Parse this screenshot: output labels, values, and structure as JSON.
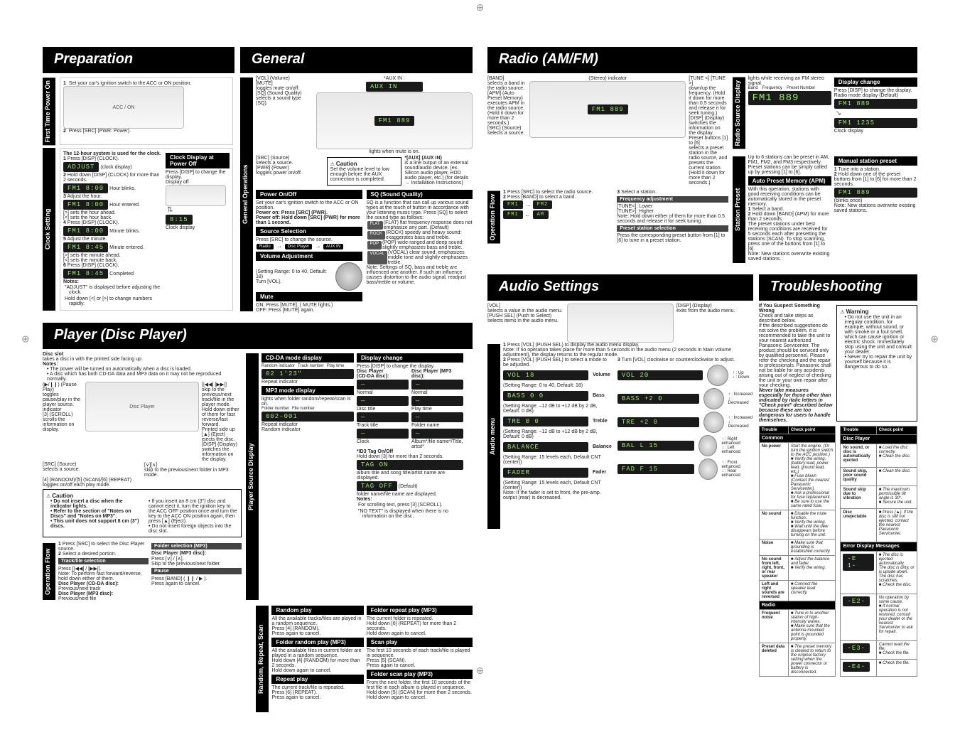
{
  "headers": {
    "preparation": "Preparation",
    "general": "General",
    "radio": "Radio (AM/FM)",
    "player": "Player (Disc Player)",
    "audio": "Audio Settings",
    "trouble": "Troubleshooting"
  },
  "vtabs": {
    "firstPower": "First Time Power On",
    "clockSetting": "Clock Setting",
    "generalOps": "General Operations",
    "operFlow": "Operation Flow",
    "radioSrc": "Radio Source Display",
    "stationPreset": "Station Preset",
    "playerSrc": "Player Source Display",
    "randomRepeat": "Random, Repeat, Scan",
    "operFlow2": "Operation Flow",
    "audioMenu": "Audio menu"
  },
  "prep": {
    "step1": "Set your car's ignition switch to the ACC or ON position.",
    "step2": "Press [SRC] (PWR: Power).",
    "clockTitle": "The 12-hour system is used for the clock.",
    "clock1": "Press [DISP] (CLOCK).",
    "clockDisp": "ADJUST",
    "clockDispLabel": "(clock display)",
    "clock2": "Hold down [DISP] (CLOCK) for more than 2 seconds.",
    "clockHourBlink": "Hour blinks.",
    "clock3": "Adjust the hour.",
    "clockHourEntered": "Hour entered.",
    "clock3b": "[>] sets the hour ahead.\n[<] sets the hour back.",
    "clock4": "Press [DISP] (CLOCK).",
    "clockMinBlink": "Minute blinks.",
    "clock5": "Adjust the minute.",
    "clockMinEntered": "Minute entered.",
    "clock5b": "[>] sets the minute ahead.\n[<] sets the minute back.",
    "clock6": "Press [DISP] (CLOCK).",
    "clockDone": "Completed",
    "notesHdr": "Notes:",
    "note1": "\"ADJUST\" is displayed before adjusting the clock.",
    "note2": "Hold down [<] or [>] to change numbers rapidly.",
    "clockOffTitle": "Clock Display at Power Off",
    "clockOffBody": "Press [DISP] to change the display.",
    "displayOff": "Display off",
    "lcdHour1": "FM1  8:00",
    "lcdHour2": "FM1  8:00",
    "lcdMin1": "FM1  8:00",
    "lcdMin2": "FM1  8:45",
    "lcdDone": "FM1  8:45",
    "lcdOff": "8:15",
    "clockDisplayLabel": "Clock display"
  },
  "gen": {
    "vol": "[VOL] (Volume)",
    "mute": "[MUTE]\ntoggles mute on/off.",
    "sq": "[SQ] (Sound Quality)\nselects a sound type (SQ).",
    "src": "[SRC] (Source)\nselects a source.\n[PWR] (Power)\ntoggles power on/off.",
    "auxHdr": "*[AUX] (AUX IN)",
    "auxCap": "is a line output of an external sound/audio device. (ex. Silicon audio player, HDD audio player, etc.) (for details → Installation Instructions)",
    "auxCaution": "Caution",
    "auxCautionBody": "Set the volume level to low enough before the AUX connection is completed.",
    "auxIn": "*AUX IN :",
    "lcdAux": "AUX IN",
    "lcdMain": "FM1 889",
    "muteLabel": "lights when mute is on.",
    "powerTitle": "Power On/Off",
    "powerBody": "Set your car's ignition switch to the ACC or ON position.",
    "powerOn": "Power on: Press [SRC] (PWR).",
    "powerOff": "Power off: Hold down [SRC] (PWR) for more than 1 second.",
    "srcSelTitle": "Source Selection",
    "srcSelBody": "Press [SRC] to change the source.",
    "srcChain1": "Radio",
    "srcChain2": "Disc Player",
    "srcChain3": "AUX IN",
    "volAdjTitle": "Volume Adjustment",
    "volAdjBody": "(Setting Range: 0 to 40, Default: 18)\nTurn [VOL].",
    "muteTitle": "Mute",
    "muteOn": "ON: Press [MUTE]. ( MUTE lights.)",
    "muteOff": "OFF: Press [MUTE] again.",
    "sqTitle": "SQ (Sound Quality)",
    "sqBody": "SQ is a function that can call up various sound types at the touch of button in accordance with your listening music type.\nPress [SQ] to select the sound type as follows:",
    "sqFlat": "(FLAT) flat frequency response does not emphasize any part. (Default)",
    "sqRock": "(ROCK) speedy and heavy sound: exaggerates bass and treble.",
    "sqPop": "(POP) wide-ranged and deep sound: slightly emphasizes bass and treble.",
    "sqVocal": "(VOCAL) clear sound: emphasizes middle tone and slightly emphasizes treble.",
    "sqNote": "Note: Settings of SQ, bass and treble are influenced one another. If such an influence causes distortion to the audio signal, readjust bass/treble or volume.",
    "chipFlat": "FLAT",
    "chipRock": "ROCK",
    "chipPop": "POP",
    "chipVocal": "VOCAL"
  },
  "radio": {
    "band": "[BAND]\nselects a band in the radio source.\n[APM] (Auto Preset Memory)\nexecutes APM in the radio source. (Hold it down for more than 2 seconds.)",
    "src": "[SRC] (Source)\nselects a source.",
    "tune": "[TUNE <] [TUNE >]\ndown/up the frequency. (Hold it down for more than 0.5 seconds and release it for seek tuning.)",
    "disp": "[DISP] (Display)\nswitches the information on the display.",
    "stereo": "(Stereo) indicator",
    "lcd": "FM1 889",
    "preset": "Preset buttons [1] to [6]\nselects a preset station in the radio source, and presets the current station. (Hold it down for more than 2 seconds.)",
    "flow1": "Press [SRC] to select the radio source.",
    "flow2": "Press [BAND] to select a band.",
    "flow3": "Select a station.",
    "bandChain1": "FM1",
    "bandChain2": "FM2",
    "bandChain3": "AM",
    "bandChain4": "FM1",
    "freqTitle": "Frequency adjustment",
    "freqBody": "[TUNE<]: Lower\n[TUNE>]: Higher",
    "freqNote": "Note: Hold down either of them for more than 0.5 seconds and release it for seek tuning.",
    "presetSelTitle": "Preset station selection",
    "presetSelBody": "Press the corresponding preset button from [1] to [6] to tune in a preset station.",
    "rsLights": "lights while receiving an FM stereo signal.",
    "rsBand": "Band",
    "rsFreq": "Frequency",
    "rsPreset": "Preset Number",
    "rsLcd1": "FM1 889",
    "dispChgTitle": "Display change",
    "dispChgBody": "Press [DISP] to change the display.",
    "dispChgLabel": "Radio mode display (Default)",
    "rsLcd2": "FM1 889",
    "rsLcd3": "FM1 1235",
    "clockDisp": "Clock display",
    "spBody": "Up to 6 stations can be preset in AM, FM1, FM2, and FM3 respectively.\nPreset stations can be simply called up by pressing [1] to [6].",
    "apmTitle": "Auto Preset Memory (APM)",
    "apmBody": "With this operation, stations with good receiving conditions can be automatically stored in the preset memory.",
    "apm1": "Select a band.",
    "apm2": "Hold down [BAND] (APM) for more than 2 seconds.",
    "apmNote": "The preset stations under best receiving conditions are received for 5 seconds each after presetting the stations (SCAN). To stop scanning, press one of the buttons from [1] to [6].",
    "apmNote2": "Note: New stations overwrite existing saved stations.",
    "manTitle": "Manual station preset",
    "man1": "Tune into a station.",
    "man2": "Hold down one of the preset buttons from [1] to [6] for more than 2 seconds.",
    "manLcd": "FM1 889",
    "manBlink": "(blinks once)",
    "manNote": "Note: New stations overwrite existing saved stations."
  },
  "player": {
    "discSlot": "Disc slot",
    "discSlotBody": "takes a disc in with the printed side facing up.",
    "notesHdr": "Notes:",
    "note1": "The power will be turned on automatically when a disc is loaded.",
    "note2": "A disc which has both CD-DA data and MP3 data on it may not be reproduced normally.",
    "discInd": " indicator",
    "pp": "(▶/❙❙) (Pause Play)\ntoggles pause/play in the player source.",
    "scroll": "[3] (SCROLL)\nscrolls the information on display.",
    "src": "[SRC] (Source)\nselects a source.",
    "trackNav": "[|◀◀] [▶▶|]\nskip to the previous/next track/file in the player mode. Hold down either of them for fast reverse/fast forward.",
    "eject": "[▲] (Eject)\nejects the disc.",
    "dispBtn": "[DISP] (Display)\nswitches the information on the display.",
    "folder": "[∨][∧]\nskip to the previous/next folder in MP3 mode.",
    "randRep": "[4] (RANDOM)/[5] (SCAN)/[6] (REPEAT)\ntoggles on/off each play mode.",
    "printed": "Printed side up",
    "cautTitle": "Caution",
    "caut1": "Do not insert a disc when the  indicator lights.",
    "caut2": "Refer to the section of \"Notes on Discs\" and \"Notes on MP3\".",
    "caut3": "This unit does not support 8 cm (3\") discs.",
    "cautR1": "If you insert an 8 cm (3\") disc and cannot eject it, turn the ignition key to the ACC OFF position once and turn the key to the ACC ON position again, then press [▲] (Eject).",
    "cautR2": "Do not insert foreign objects into the disc slot.",
    "of1": "Press [SRC] to select the Disc Player source.",
    "of2": "Select a desired portion.",
    "tfTitle": "Track/file selection",
    "tfBody": "Press [|◀◀] / [▶▶|].",
    "tfNote": "Note: To perform fast forward/reverse, hold down either of them.",
    "tfCD": "Disc Player (CD-DA disc):",
    "tfCDb": "Previous/next track",
    "tfMP3": "Disc Player (MP3 disc):",
    "tfMP3b": "Previous/next file",
    "fsTitle": "Folder selection (MP3)",
    "fsHdr": "Disc Player (MP3 disc):",
    "fsBody": "Press [∨] / [∧].\nSkip to the previous/next folder.",
    "pauseTitle": "Pause",
    "pauseBody": "Press [BAND] ( ❙❙ / ▶ ).\nPress again to cancel.",
    "cdaTitle": "CD-DA mode display",
    "cdaR": "Random indicator",
    "cdaT": "Track number",
    "cdaP": "Play time",
    "cdaLcd": "02   1'23\"",
    "cdaRep": "Repeat indicator",
    "mp3Title": "MP3 mode display",
    "mp3Lights": "lights when folder random/repeat/scan is on.",
    "mp3F": "Folder number",
    "mp3Fi": "File number",
    "mp3Lcd": "002-001",
    "mp3Rep": "Repeat indicator",
    "mp3Rnd": "Random indicator",
    "dcTitle": "Display change",
    "dcBody": "Press [DISP] to change the display.",
    "dcCD": "Disc Player\n(CD-DA disc):",
    "dcMP3": "Disc Player (MP3 disc):",
    "dcNormal": "Normal",
    "dcDiscTitle": "Disc title",
    "dcTrackTitle": "Track title",
    "dcClock": "Clock",
    "dcFolder": "Folder name",
    "dcAlbum": "Album*/file name*/Title, artist*",
    "dcPlayTime": "Play time",
    "id3Title": "*ID3 Tag On/Off",
    "id3Body": "Hold down [3] for more than 2 seconds.",
    "id3On": "TAG ON",
    "id3OnBody": "album title and song title/artist name are displayed.",
    "id3Off": "TAG OFF",
    "id3OffDef": "(Default)",
    "id3OffBody": "folder name/file name are displayed.",
    "dcNotes": "Notes:",
    "dcN1": "For scrolling text, press [3] (SCROLL).",
    "dcN2": "\"NO TEXT\" is displayed when there is no information on the disc.",
    "rpTitle": "Random play",
    "rpBody": "All the available tracks/files are played in a random sequence.\nPress [4] (RANDOM).\nPress again to cancel.",
    "frpTitle": "Folder random play (MP3)",
    "frpBody": "All the available files in current folder are played in a random sequence.\nHold down [4] (RANDOM) for more than 2 seconds.\nHold down again to cancel.",
    "repTitle": "Repeat play",
    "repBody": "The current track/file is repeated.\nPress [6] (REPEAT).\nPress again to cancel.",
    "frepTitle": "Folder repeat play (MP3)",
    "frepBody": "The current folder is repeated.\nHold down [6] (REPEAT) for more than 2 seconds.\nHold down again to cancel.",
    "scanTitle": "Scan play",
    "scanBody": "The first 10 seconds of each track/file is played in sequence.\nPress [5] (SCAN).\nPress again to cancel.",
    "fscanTitle": "Folder scan play (MP3)",
    "fscanBody": "From the next folder, the first 10 seconds of the first file in each album is played in sequence.\nHold down [5] (SCAN) for more than 2 seconds.\nHold down again to cancel."
  },
  "audio": {
    "volLabel": "[VOL]\nselects a value in the audio menu.\n[PUSH SEL] (Push to Select)\nselects items in the audio menu.",
    "dispLabel": "[DISP] (Display)\nexits from the audio menu.",
    "s1": "Press [VOL] (PUSH SEL) to display the audio menu display.",
    "s1Note": "Note: If no operation takes place for more than 5 seconds in the audio menu (2 seconds in Main volume adjustment), the display returns to the regular mode.",
    "s2": "Press [VOL] (PUSH SEL) to select a mode to be adjusted.",
    "s3": "Turn [VOL] clockwise or counterclockwise to adjust.",
    "items": [
      {
        "lcd": "VOL   18",
        "name": "Volume",
        "range": "(Setting Range: 0 to 40, Default: 18)",
        "up": "↑ : Up",
        "dn": "↓ : Down",
        "rlcd": "VOL   20"
      },
      {
        "lcd": "BASS  0  0",
        "name": "Bass",
        "range": "(Setting Range: –12 dB to +12 dB by 2 dB, Default: 0 dB)",
        "up": "↑ : Increased",
        "dn": "↓ : Decreased",
        "rlcd": "BASS  +2  0"
      },
      {
        "lcd": "TRE 0  0",
        "name": "Treble",
        "range": "(Setting Range: –12 dB to +12 dB by 2 dB, Default: 0 dB)",
        "up": "↑ : Increased",
        "dn": "↓ : Decreased",
        "rlcd": "TRE  +2  0"
      },
      {
        "lcd": "BALANCE",
        "name": "Balance",
        "range": "(Setting Range: 15 levels each, Default CNT (center))",
        "up": "↑ : Right enhanced",
        "dn": "↓ : Left enhanced",
        "rlcd": "BAL L  15"
      },
      {
        "lcd": "FADER",
        "name": "Fader",
        "range": "(Setting Range: 15 levels each, Default CNT (center))",
        "up": "↑ : Front enhanced",
        "dn": "↓ : Rear enhanced",
        "rlcd": "FAD F  15"
      }
    ],
    "faderNote": "Note: If the fader is set to front, the pre-amp. output (rear) is decreased."
  },
  "trouble": {
    "lead": "If You Suspect Something Wrong",
    "leadBody": "Check and take steps as described below.\nIf the described suggestions do not solve the problem, it is recommended to take the unit to your nearest authorized Panasonic Servicenter. The product should be serviced only by qualified personnel. Please refer the checking and the repair to professionals. Panasonic shall not be liable for any accidents arising out of neglect of checking the unit or your own repair after your checking.",
    "never": "Never take measures especially for those other than indicated by italic letters in \"Check point\" described below because these are too dangerous for users to handle themselves.",
    "warnTitle": "Warning",
    "warn1": "Do not use the unit in an irregular condition, for example, without sound, or with smoke or a foul smell, which can cause ignition or electric shock. Immediately stop using the unit and consult your dealer.",
    "warn2": "Never try to repair the unit by yourself because it is dangerous to do so.",
    "thTrouble": "Trouble",
    "thCheck": "Check point",
    "grpCommon": "Common",
    "grpDisc": "Disc Player",
    "grpErr": "Error Display Messages",
    "grpRadio": "Radio",
    "rows": [
      {
        "t": "No power",
        "c": "Start the engine. (Or turn the ignition switch to the ACC position.)\n■ Verify the wiring. (battery lead, power lead, ground lead, etc.)\n■ Fuse blown (Contact the nearest Panasonic Servicenter).\n■ Ask a professional for fuse replacement.\n■ Be sure to use the same rated fuse."
      },
      {
        "t": "No sound",
        "c": "■ Disable the mute function.\n■ Verify the wiring.\n■ Wait until the dew disappears before turning on the unit."
      },
      {
        "t": "Noise",
        "c": "■ Make sure that grounding is established correctly."
      },
      {
        "t": "No sound from left, right, front, or rear speaker",
        "c": "■ Adjust the balance and fader.\n■ Verify the wiring."
      },
      {
        "t": "Left and right sounds are reversed",
        "c": "■ Connect the speaker lead correctly."
      },
      {
        "t": "Frequent noise",
        "c": "■ Tune in to another station of high-intensity waves.\n■ Make sure that the antenna mounted point is grounded properly."
      },
      {
        "t": "Preset data deleted",
        "c": "■ The preset memory is cleared to return to the original factory setting when the power connector or battery is disconnected."
      }
    ],
    "rows2": [
      {
        "t": "No sound, or disc is automatically ejected",
        "c": "■ Load the disc correctly.\n■ Clean the disc."
      },
      {
        "t": "Sound skip, poor sound quality",
        "c": "■ Clean the disc."
      },
      {
        "t": "Sound skip due to vibration",
        "c": "■ The maximum permissible tilt angle is 30°.\n■ Secure the unit."
      },
      {
        "t": "Disc unejectable",
        "c": "■ Press [▲]. If the disc is still not ejected, contact the nearest Panasonic Servicenter."
      }
    ],
    "errRows": [
      {
        "lcd": "-E 1-",
        "c": "■ The disc is ejected automatically.\nThe disc is dirty, or is upside down.\nThe disc has scratches.\n■ Check the disc."
      },
      {
        "lcd": "-E2-",
        "c": "No operation by some cause.\n■ If normal operation is not restored, consult your dealer or the nearest Servicenter to ask for repair."
      },
      {
        "lcd": "-E3-",
        "c": "Cannot read the file.\n■ Check the file."
      },
      {
        "lcd": "-E4-",
        "c": "■ Check the file."
      }
    ]
  }
}
